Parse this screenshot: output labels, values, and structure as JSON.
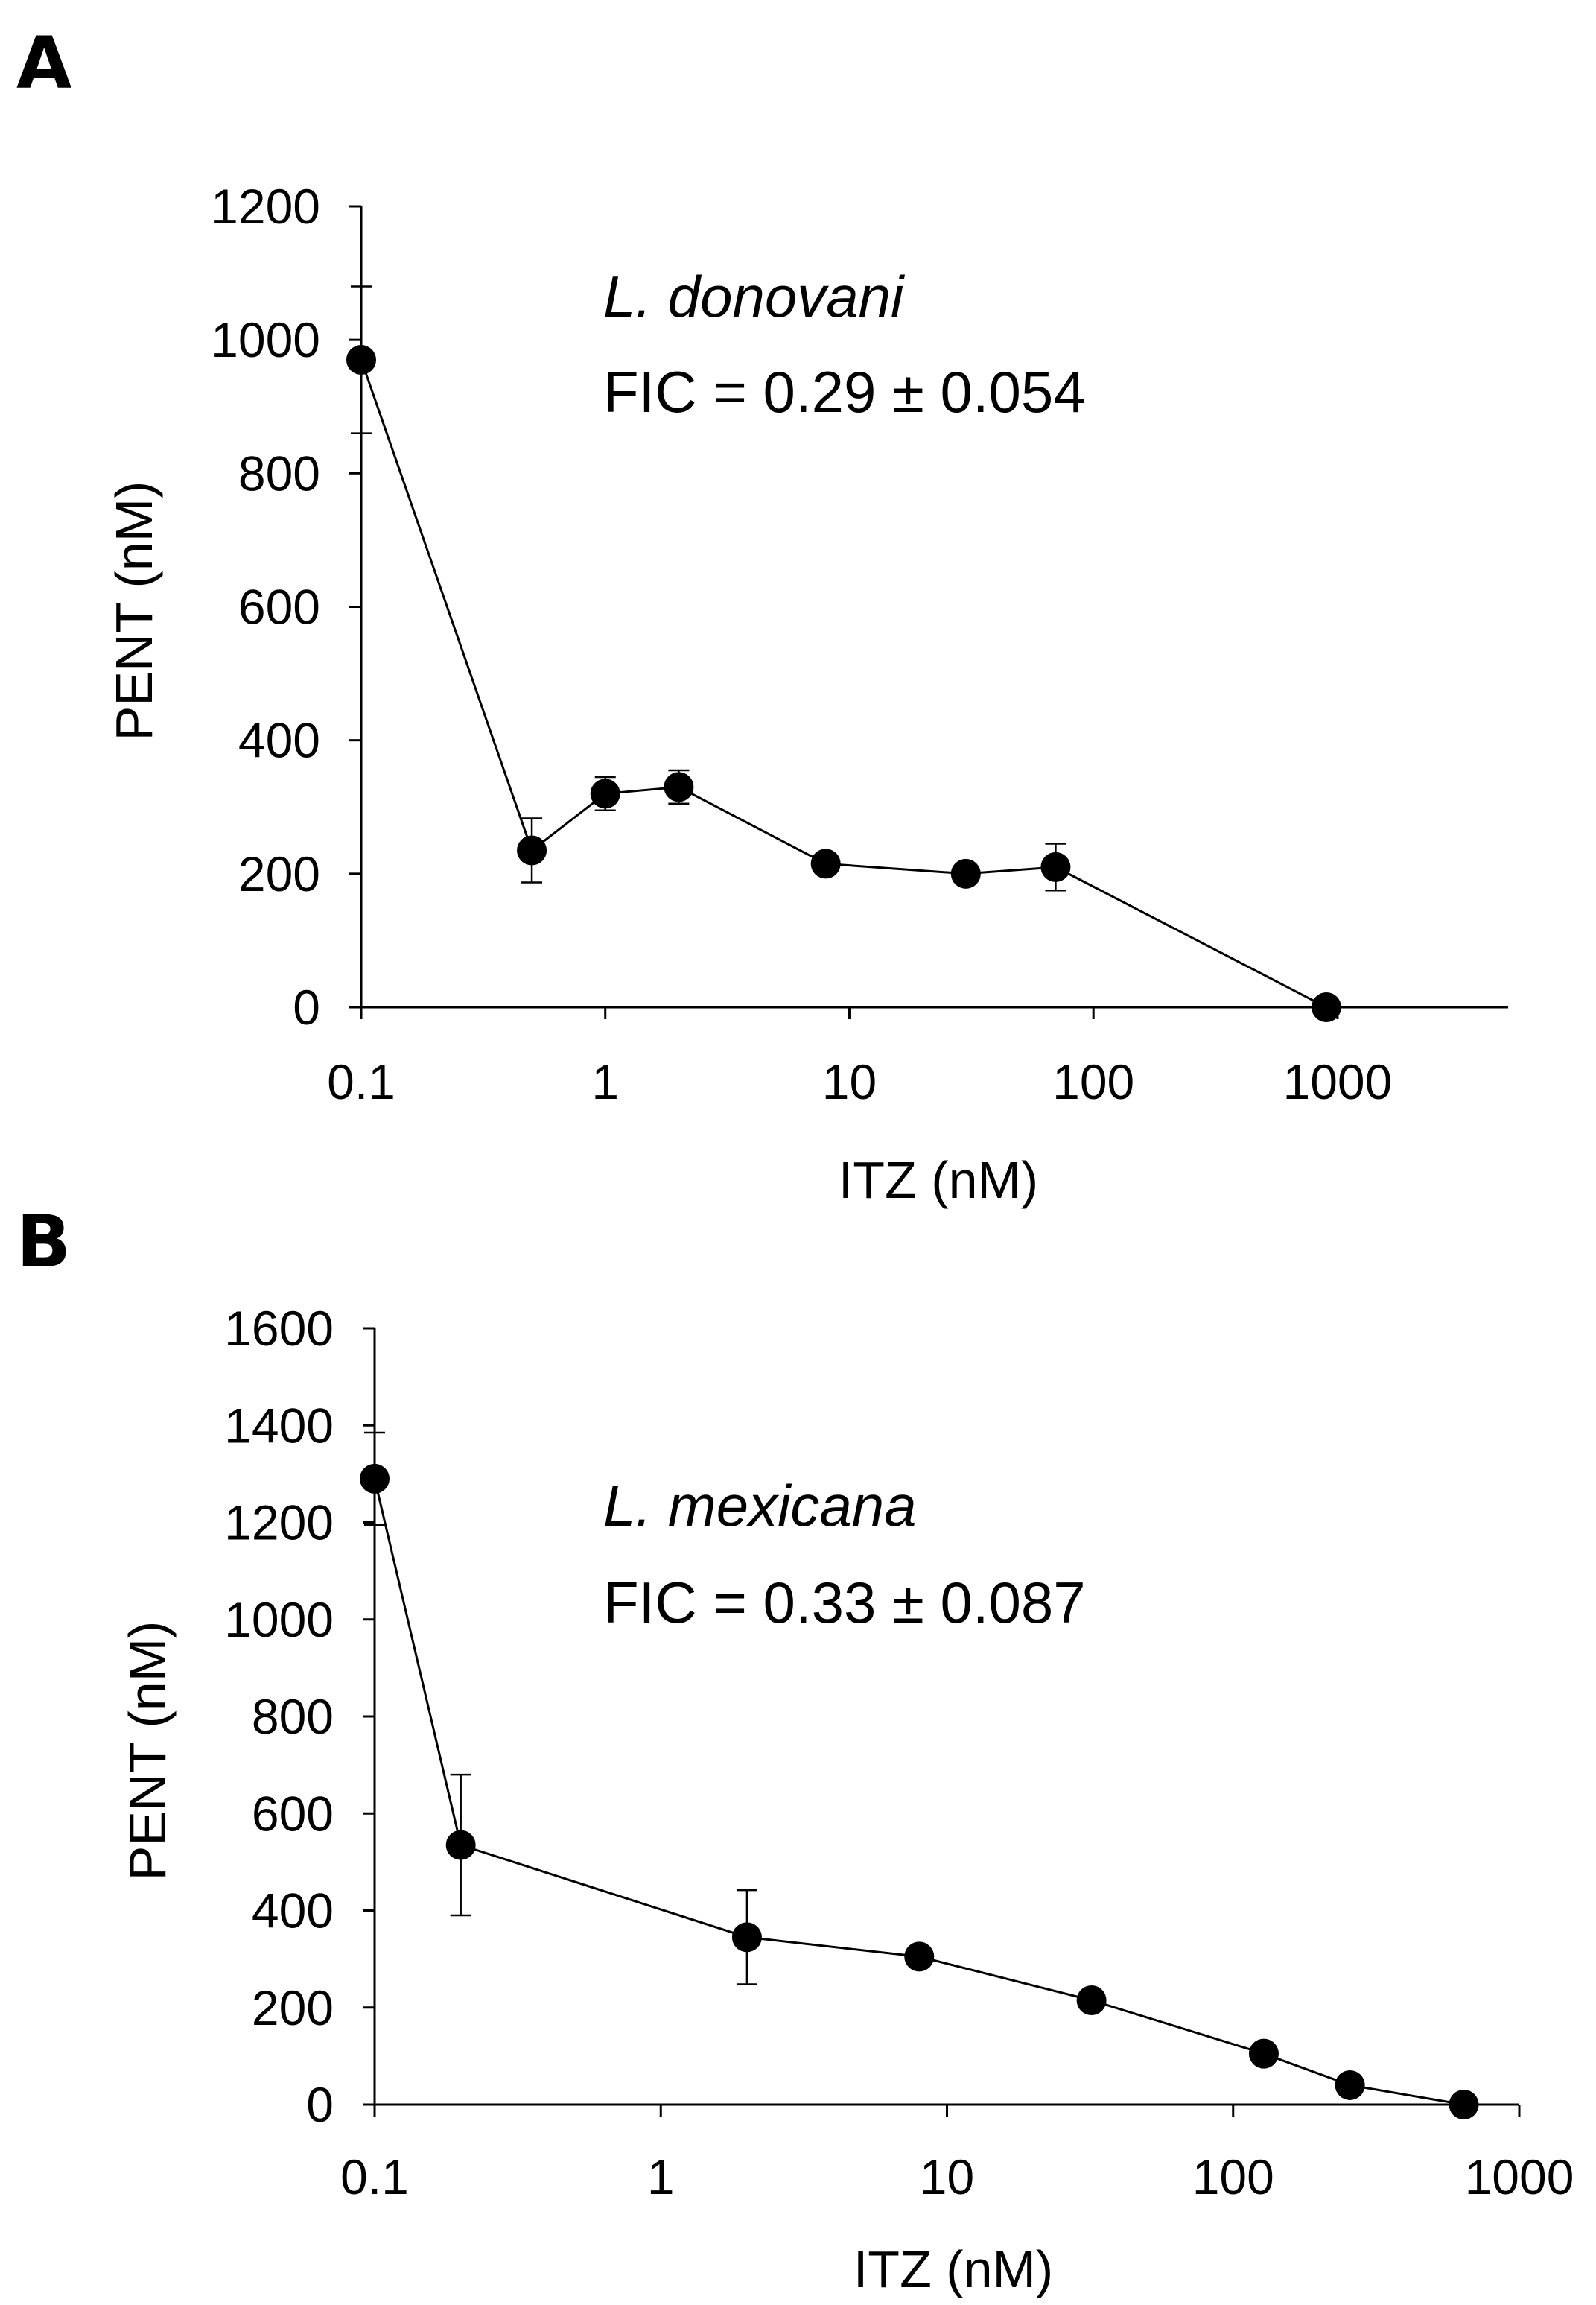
{
  "chart_data": [
    {
      "panel": "A",
      "type": "line",
      "xscale": "log",
      "xlabel": "ITZ (nM)",
      "ylabel": "PENT (nM)",
      "xlim": [
        0.1,
        5000
      ],
      "ylim": [
        0,
        1200
      ],
      "xticks": [
        0.1,
        1,
        10,
        100,
        1000
      ],
      "xtick_labels": [
        "0.1",
        "1",
        "10",
        "100",
        "1000"
      ],
      "yticks": [
        0,
        200,
        400,
        600,
        800,
        1000,
        1200
      ],
      "ytick_labels": [
        "0",
        "200",
        "400",
        "600",
        "800",
        "1000",
        "1200"
      ],
      "annotation_species": "L. donovani",
      "annotation_fic": "FIC = 0.29 ± 0.054",
      "series": [
        {
          "name": "L. donovani",
          "x": [
            0.1,
            0.5,
            1,
            2,
            8,
            30,
            70,
            900
          ],
          "y": [
            970,
            235,
            320,
            330,
            215,
            200,
            210,
            0
          ],
          "err": [
            110,
            48,
            25,
            25,
            0,
            0,
            35,
            0
          ]
        }
      ]
    },
    {
      "panel": "B",
      "type": "line",
      "xscale": "log",
      "xlabel": "ITZ (nM)",
      "ylabel": "PENT (nM)",
      "xlim": [
        0.1,
        1000
      ],
      "ylim": [
        0,
        1600
      ],
      "xticks": [
        0.1,
        1,
        10,
        100,
        1000
      ],
      "xtick_labels": [
        "0.1",
        "1",
        "10",
        "100",
        "1000"
      ],
      "yticks": [
        0,
        200,
        400,
        600,
        800,
        1000,
        1200,
        1400,
        1600
      ],
      "ytick_labels": [
        "0",
        "200",
        "400",
        "600",
        "800",
        "1000",
        "1200",
        "1400",
        "1600"
      ],
      "annotation_species": "L. mexicana",
      "annotation_fic": "FIC = 0.33 ± 0.087",
      "series": [
        {
          "name": "L. mexicana",
          "x": [
            0.1,
            0.2,
            2,
            8,
            32,
            128,
            256,
            640
          ],
          "y": [
            1290,
            535,
            345,
            305,
            215,
            105,
            40,
            0
          ],
          "err": [
            95,
            145,
            97,
            0,
            0,
            0,
            0,
            0
          ]
        }
      ]
    }
  ]
}
